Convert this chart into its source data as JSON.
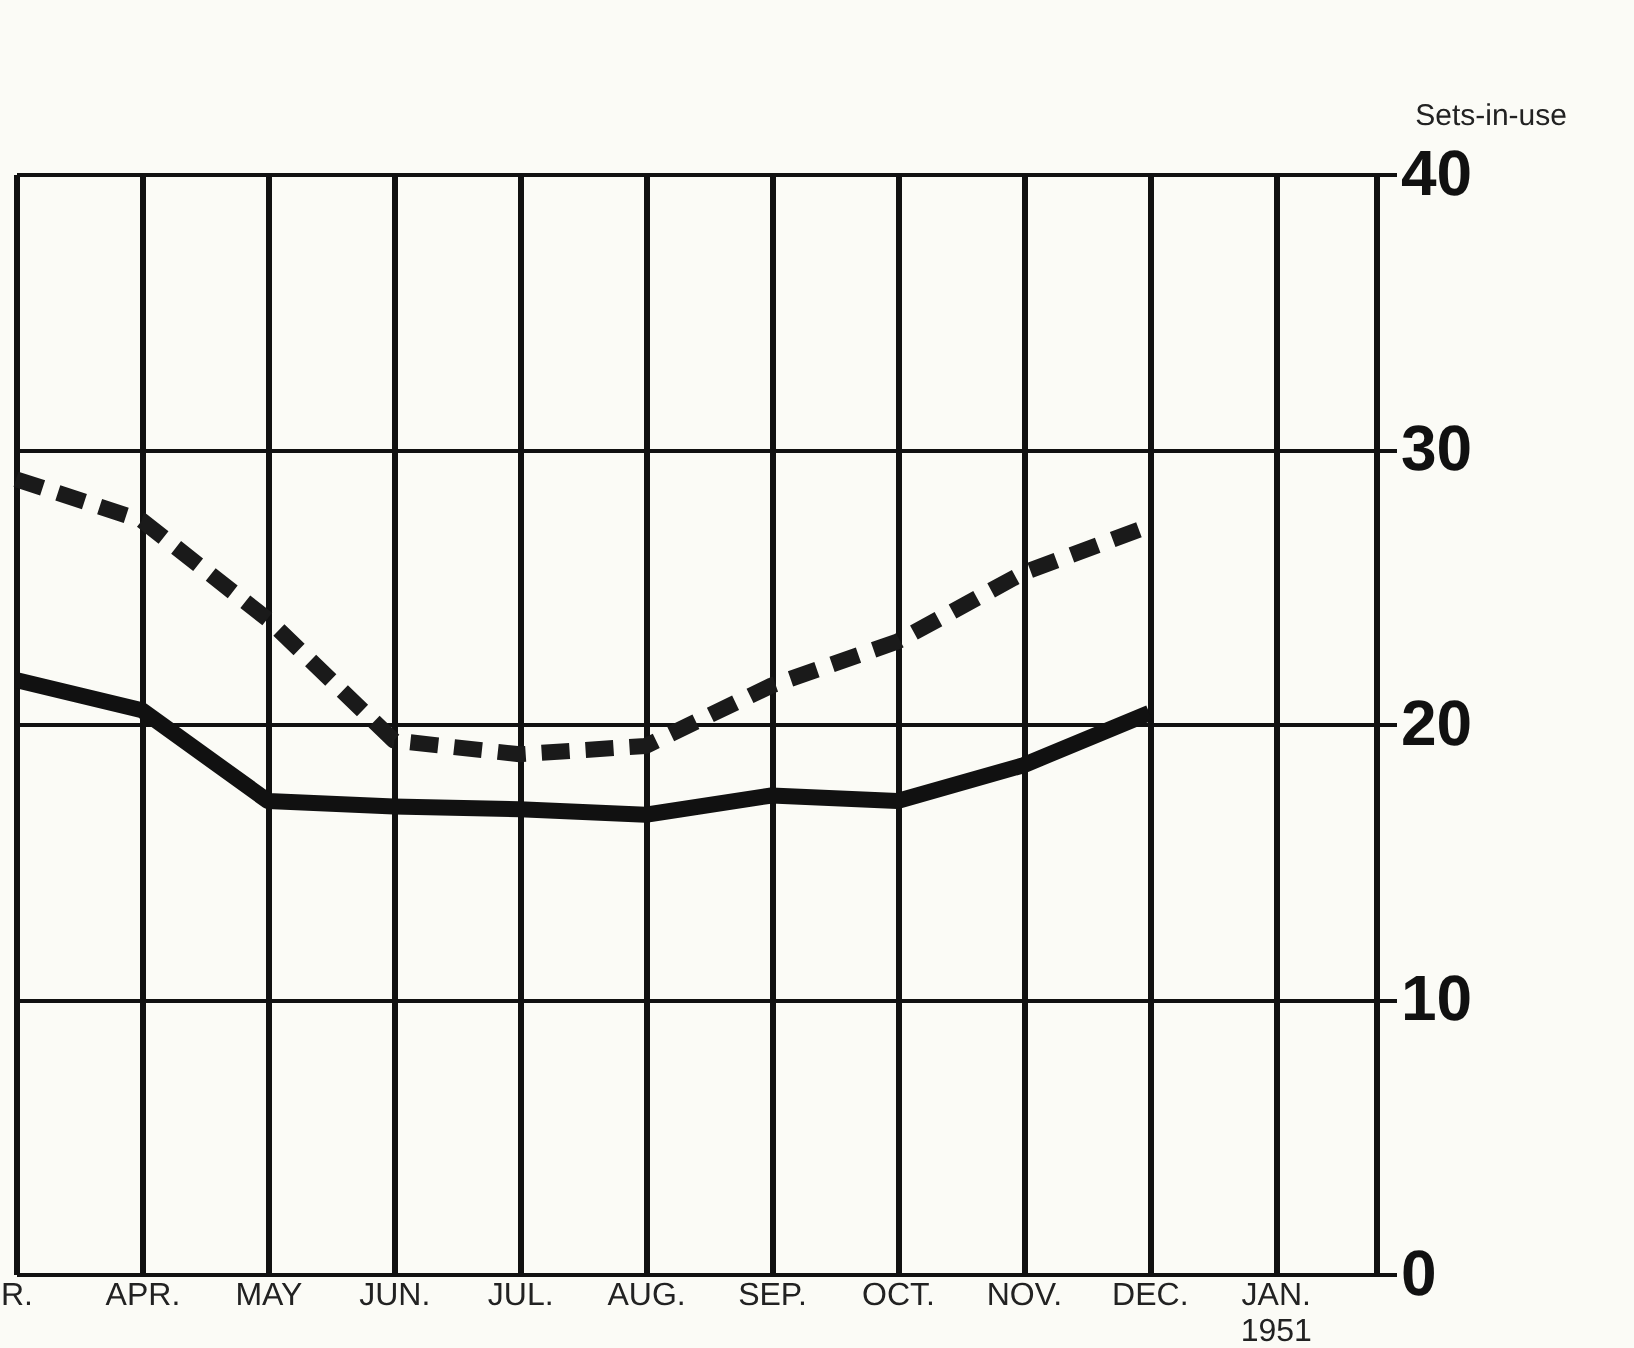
{
  "chart_data": {
    "type": "line",
    "ylabel": "Sets-in-use",
    "categories": [
      "R.",
      "APR.",
      "MAY",
      "JUN.",
      "JUL.",
      "AUG.",
      "SEP.",
      "OCT.",
      "NOV.",
      "DEC.",
      "JAN.\n1951"
    ],
    "series": [
      {
        "color": "#1a1a1a",
        "line_style": "dashed",
        "values": [
          28.9,
          27.4,
          23.8,
          19.4,
          18.9,
          19.2,
          21.4,
          23.0,
          25.5,
          27.2,
          null
        ]
      },
      {
        "color": "#111111",
        "line_style": "solid",
        "values": [
          21.6,
          20.5,
          17.2,
          17.0,
          16.9,
          16.7,
          17.4,
          17.2,
          18.5,
          20.4,
          null
        ]
      }
    ],
    "ylim": [
      0,
      40
    ],
    "yticks": [
      0,
      10,
      20,
      30,
      40
    ],
    "grid": true,
    "marker": "none"
  }
}
